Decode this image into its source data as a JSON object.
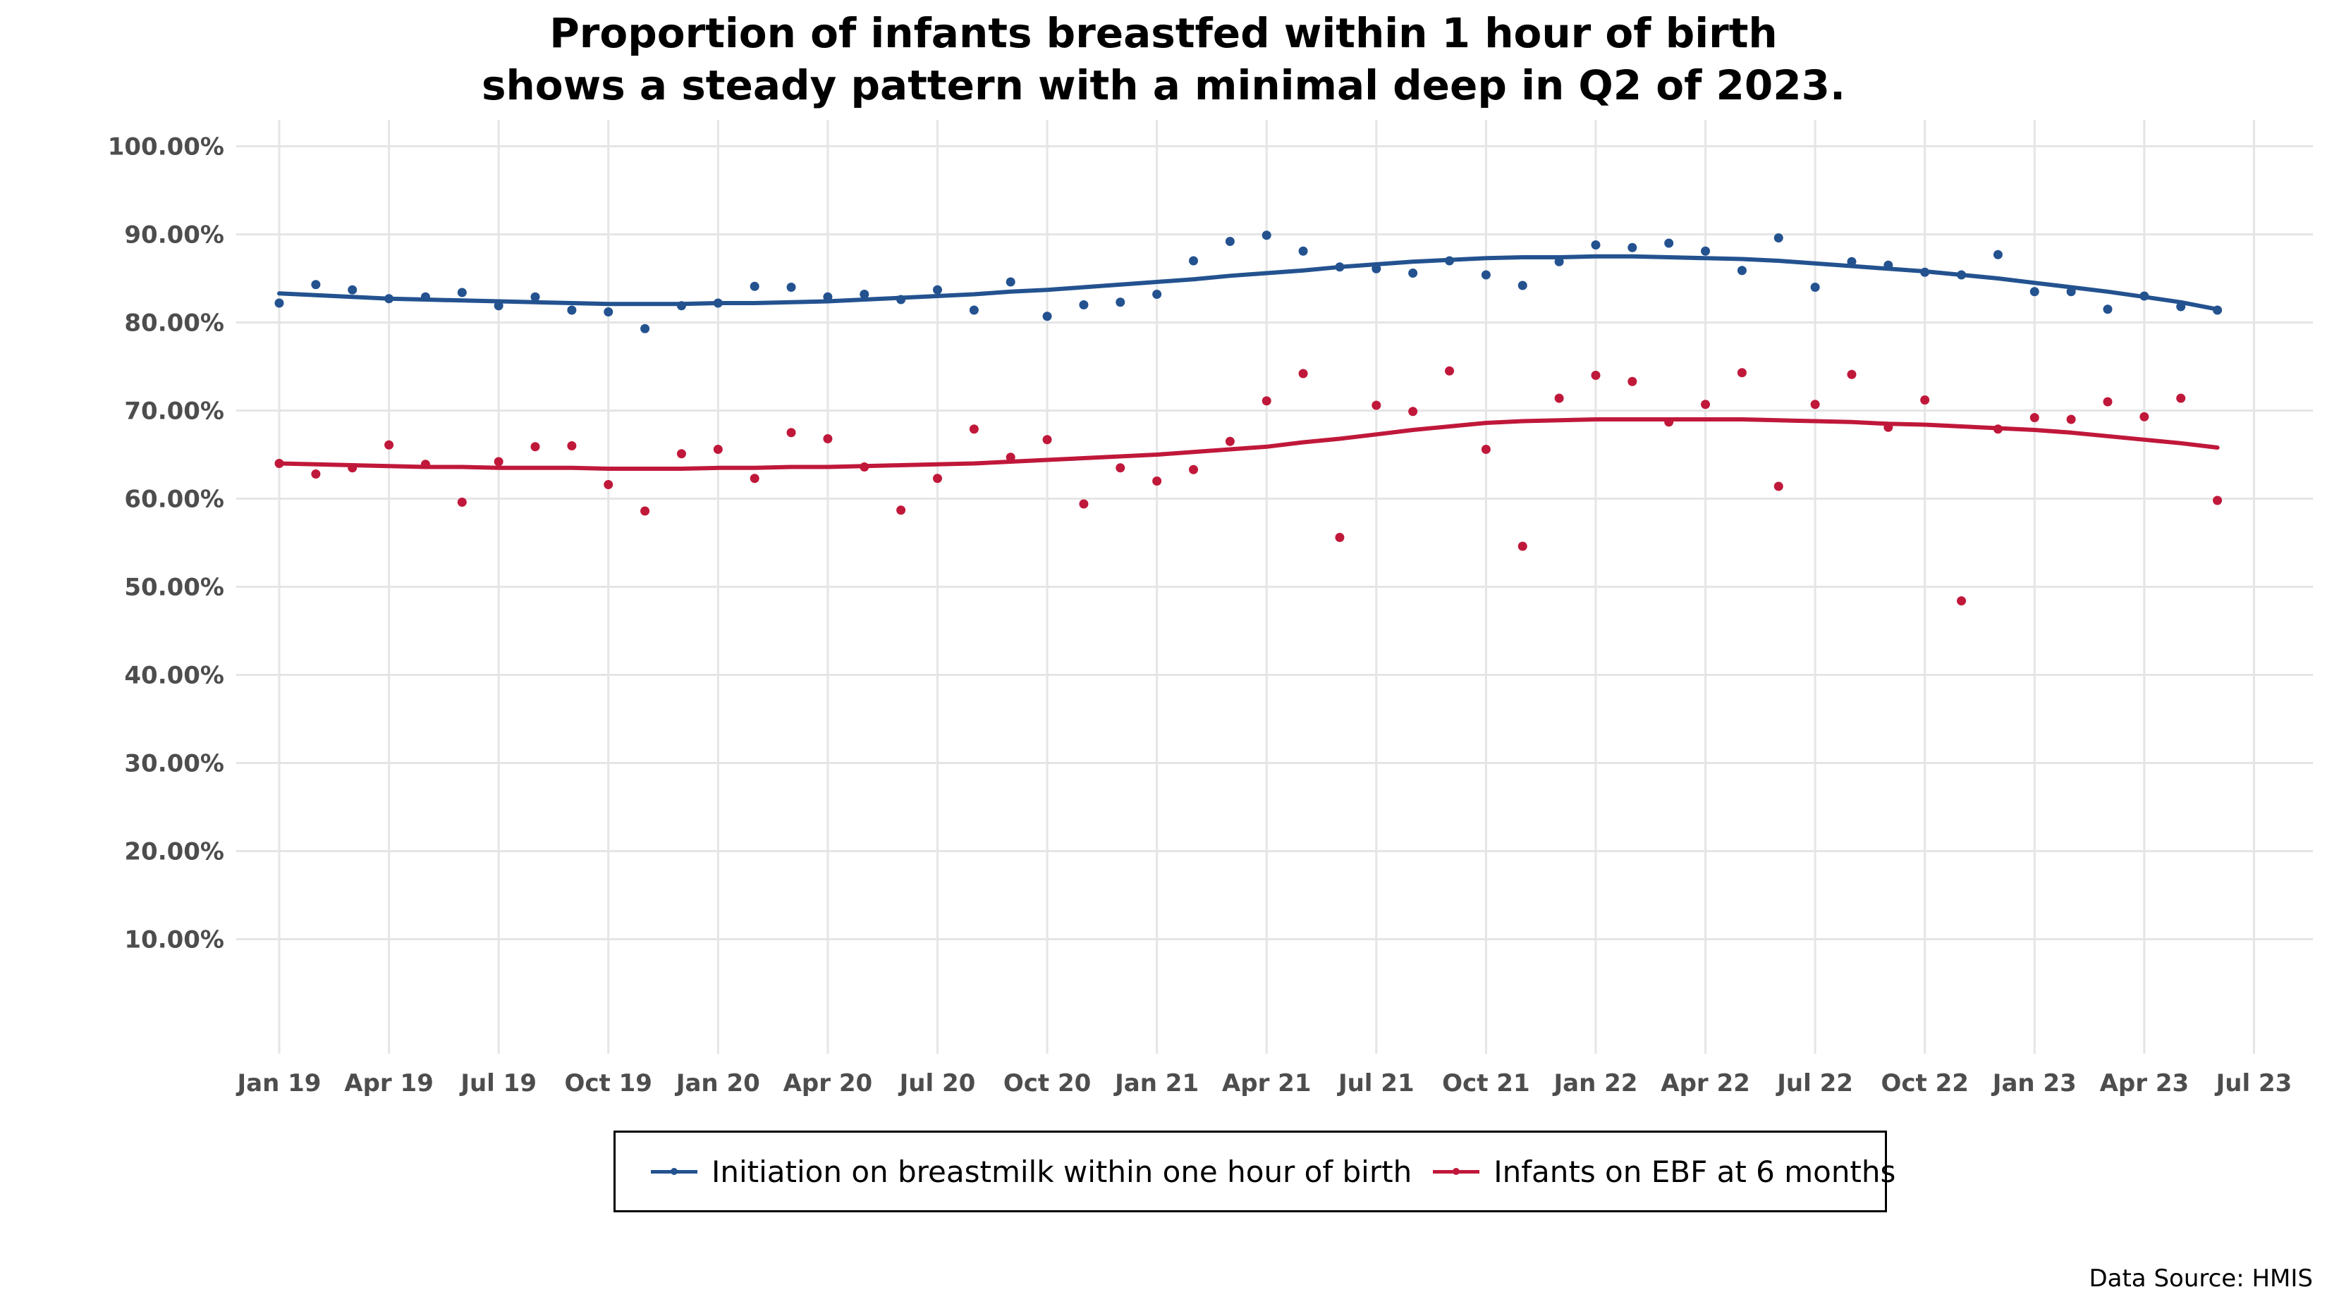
{
  "title_lines": [
    "Proportion of infants breastfed within 1 hour of birth",
    "shows a steady pattern with a minimal deep in Q2 of 2023."
  ],
  "caption": "Data Source: HMIS",
  "chart_data": {
    "type": "scatter",
    "x_axis": {
      "type": "monthly",
      "start": "Jan 19",
      "ticks": [
        "Jan 19",
        "Apr 19",
        "Jul 19",
        "Oct 19",
        "Jan 20",
        "Apr 20",
        "Jul 20",
        "Oct 20",
        "Jan 21",
        "Apr 21",
        "Jul 21",
        "Oct 21",
        "Jan 22",
        "Apr 22",
        "Jul 22",
        "Oct 22",
        "Jan 23",
        "Apr 23",
        "Jul 23"
      ]
    },
    "y_axis": {
      "ticks": [
        "10.00%",
        "20.00%",
        "30.00%",
        "40.00%",
        "50.00%",
        "60.00%",
        "70.00%",
        "80.00%",
        "90.00%",
        "100.00%"
      ],
      "ylim": [
        -3,
        103
      ]
    },
    "grid": true,
    "legend_position": "bottom",
    "months": [
      "Jan 19",
      "Feb 19",
      "Mar 19",
      "Apr 19",
      "May 19",
      "Jun 19",
      "Jul 19",
      "Aug 19",
      "Sep 19",
      "Oct 19",
      "Nov 19",
      "Dec 19",
      "Jan 20",
      "Feb 20",
      "Mar 20",
      "Apr 20",
      "May 20",
      "Jun 20",
      "Jul 20",
      "Aug 20",
      "Sep 20",
      "Oct 20",
      "Nov 20",
      "Dec 20",
      "Jan 21",
      "Feb 21",
      "Mar 21",
      "Apr 21",
      "May 21",
      "Jun 21",
      "Jul 21",
      "Aug 21",
      "Sep 21",
      "Oct 21",
      "Nov 21",
      "Dec 21",
      "Jan 22",
      "Feb 22",
      "Mar 22",
      "Apr 22",
      "May 22",
      "Jun 22",
      "Jul 22",
      "Aug 22",
      "Sep 22",
      "Oct 22",
      "Nov 22",
      "Dec 22",
      "Jan 23",
      "Feb 23",
      "Mar 23",
      "Apr 23",
      "May 23",
      "Jun 23"
    ],
    "series": [
      {
        "name": "Initiation on breastmilk within one hour of birth",
        "color": "#23528f",
        "values": [
          82.2,
          84.3,
          83.7,
          82.7,
          82.9,
          83.4,
          81.9,
          82.9,
          81.4,
          81.2,
          79.3,
          81.9,
          82.2,
          84.1,
          84.0,
          82.9,
          83.2,
          82.6,
          83.7,
          81.4,
          84.6,
          80.7,
          82.0,
          82.3,
          83.2,
          87.0,
          89.2,
          89.9,
          88.1,
          86.3,
          86.1,
          85.6,
          87.0,
          85.4,
          84.2,
          86.9,
          88.8,
          88.5,
          89.0,
          88.1,
          85.9,
          89.6,
          84.0,
          86.9,
          86.5,
          85.7,
          85.4,
          87.7,
          83.5,
          83.5,
          81.5,
          83.0,
          81.8,
          81.4
        ],
        "trend": [
          83.3,
          83.1,
          82.9,
          82.7,
          82.6,
          82.5,
          82.4,
          82.3,
          82.2,
          82.1,
          82.1,
          82.1,
          82.2,
          82.2,
          82.3,
          82.4,
          82.6,
          82.8,
          83.0,
          83.2,
          83.5,
          83.7,
          84.0,
          84.3,
          84.6,
          84.9,
          85.3,
          85.6,
          85.9,
          86.3,
          86.6,
          86.9,
          87.1,
          87.3,
          87.4,
          87.4,
          87.5,
          87.5,
          87.4,
          87.3,
          87.2,
          87.0,
          86.7,
          86.4,
          86.1,
          85.8,
          85.4,
          85.0,
          84.5,
          84.0,
          83.5,
          82.9,
          82.3,
          81.5
        ]
      },
      {
        "name": "Infants on EBF at 6 months",
        "color": "#c0183a",
        "values": [
          64.0,
          62.8,
          63.5,
          66.1,
          63.9,
          59.6,
          64.2,
          65.9,
          66.0,
          61.6,
          58.6,
          65.1,
          65.6,
          62.3,
          67.5,
          66.8,
          63.6,
          58.7,
          62.3,
          67.9,
          64.7,
          66.7,
          59.4,
          63.5,
          62.0,
          63.3,
          66.5,
          71.1,
          74.2,
          55.6,
          70.6,
          69.9,
          74.5,
          65.6,
          54.6,
          71.4,
          74.0,
          73.3,
          68.7,
          70.7,
          74.3,
          61.4,
          70.7,
          74.1,
          68.1,
          71.2,
          48.4,
          67.9,
          69.2,
          69.0,
          71.0,
          69.3,
          71.4,
          59.8
        ],
        "trend": [
          64.0,
          63.9,
          63.8,
          63.7,
          63.6,
          63.6,
          63.5,
          63.5,
          63.5,
          63.4,
          63.4,
          63.4,
          63.5,
          63.5,
          63.6,
          63.6,
          63.7,
          63.8,
          63.9,
          64.0,
          64.2,
          64.4,
          64.6,
          64.8,
          65.0,
          65.3,
          65.6,
          65.9,
          66.4,
          66.8,
          67.3,
          67.8,
          68.2,
          68.6,
          68.8,
          68.9,
          69.0,
          69.0,
          69.0,
          69.0,
          69.0,
          68.9,
          68.8,
          68.7,
          68.5,
          68.4,
          68.2,
          68.0,
          67.8,
          67.5,
          67.1,
          66.7,
          66.3,
          65.8
        ]
      }
    ]
  }
}
